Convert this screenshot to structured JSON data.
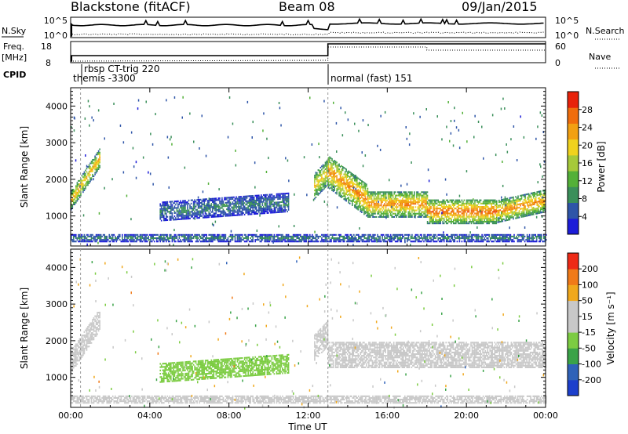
{
  "header": {
    "station": "Blackstone (fitACF)",
    "beam": "Beam 08",
    "date": "09/Jan/2015"
  },
  "colors": {
    "noise_sky": "#000000",
    "axis": "#000000",
    "power_scale": [
      "#1c1cd8",
      "#2e55a8",
      "#3a8f5a",
      "#53b038",
      "#a6c93a",
      "#f0d21e",
      "#f2a012",
      "#f06d0c",
      "#e8220a"
    ],
    "velocity_scale": [
      "#1c3fcc",
      "#2f62b8",
      "#3aa348",
      "#7ccc42",
      "#c8c8c8",
      "#c8c8c8",
      "#f0a81c",
      "#f07a18",
      "#ee2a16"
    ]
  },
  "panels": {
    "noise": {
      "left_label": "N.Sky",
      "right_label": "N.Search",
      "left_ticks": [
        "10^5",
        "10^0"
      ],
      "right_ticks": [
        "10^5",
        "10^0"
      ]
    },
    "freq": {
      "left_label_line1": "Freq.",
      "left_label_line2": "[MHz]",
      "right_label": "Nave",
      "left_ticks": [
        "18",
        "8"
      ],
      "right_ticks": [
        "60",
        "0"
      ]
    },
    "cpid": {
      "label": "CPID",
      "segments": [
        {
          "text": "rbsp CT-trig 220",
          "start_hour": 0.2
        },
        {
          "text": "themis -3300",
          "start_hour": 0.2
        },
        {
          "text": "normal (fast) 151",
          "start_hour": 13.0
        }
      ]
    }
  },
  "chart_data": [
    {
      "type": "heatmap",
      "name": "power",
      "ylabel": "Slant Range [km]",
      "xlabel": "Time UT",
      "x_ticks": [
        "00:00",
        "04:00",
        "08:00",
        "12:00",
        "16:00",
        "20:00",
        "00:00"
      ],
      "xlim_hours": [
        0,
        24
      ],
      "y_ticks": [
        1000,
        2000,
        3000,
        4000
      ],
      "ylim": [
        180,
        4500
      ],
      "colorbar": {
        "label": "Power [dB]",
        "ticks": [
          "4",
          "8",
          "12",
          "16",
          "20",
          "24",
          "28"
        ],
        "range": [
          0,
          30
        ]
      },
      "features": [
        {
          "t0": 0.0,
          "t1": 1.5,
          "r0_start": 1400,
          "r0_end": 2600,
          "value": 22,
          "width": 500
        },
        {
          "t0": 4.5,
          "t1": 11.0,
          "r0_start": 1100,
          "r0_end": 1350,
          "value": 8,
          "width": 500
        },
        {
          "t0": 12.3,
          "t1": 13.0,
          "r0_start": 1800,
          "r0_end": 2200,
          "value": 20,
          "width": 700
        },
        {
          "t0": 13.0,
          "t1": 15.0,
          "r0_start": 2200,
          "r0_end": 1400,
          "value": 24,
          "width": 900
        },
        {
          "t0": 15.0,
          "t1": 18.0,
          "r0_start": 1300,
          "r0_end": 1300,
          "value": 24,
          "width": 700
        },
        {
          "t0": 18.0,
          "t1": 21.5,
          "r0_start": 1100,
          "r0_end": 1100,
          "value": 26,
          "width": 650
        },
        {
          "t0": 21.5,
          "t1": 24.0,
          "r0_start": 1100,
          "r0_end": 1400,
          "value": 24,
          "width": 600
        },
        {
          "t0": 0.0,
          "t1": 24.0,
          "r0_start": 380,
          "r0_end": 380,
          "value": 8,
          "width": 200
        }
      ]
    },
    {
      "type": "heatmap",
      "name": "velocity",
      "ylabel": "Slant Range [km]",
      "xlabel": "Time UT",
      "x_ticks": [
        "00:00",
        "04:00",
        "08:00",
        "12:00",
        "16:00",
        "20:00",
        "00:00"
      ],
      "xlim_hours": [
        0,
        24
      ],
      "y_ticks": [
        1000,
        2000,
        3000,
        4000
      ],
      "ylim": [
        180,
        4500
      ],
      "colorbar": {
        "label": "Velocity [m s⁻¹]",
        "ticks": [
          "200",
          "100",
          "50",
          "15",
          "-15",
          "-50",
          "-100",
          "-200"
        ],
        "range": [
          -250,
          250
        ]
      },
      "features": [
        {
          "t0": 0.0,
          "t1": 1.5,
          "r0_start": 1400,
          "r0_end": 2600,
          "value": 0,
          "width": 600
        },
        {
          "t0": 4.5,
          "t1": 11.0,
          "r0_start": 1100,
          "r0_end": 1350,
          "value": -60,
          "width": 500
        },
        {
          "t0": 12.3,
          "t1": 13.0,
          "r0_start": 1800,
          "r0_end": 2200,
          "value": 60,
          "width": 700
        },
        {
          "t0": 13.0,
          "t1": 24.0,
          "r0_start": 1600,
          "r0_end": 1600,
          "value": 0,
          "width": 700
        },
        {
          "t0": 0.0,
          "t1": 24.0,
          "r0_start": 380,
          "r0_end": 380,
          "value": 40,
          "width": 200
        }
      ]
    }
  ]
}
